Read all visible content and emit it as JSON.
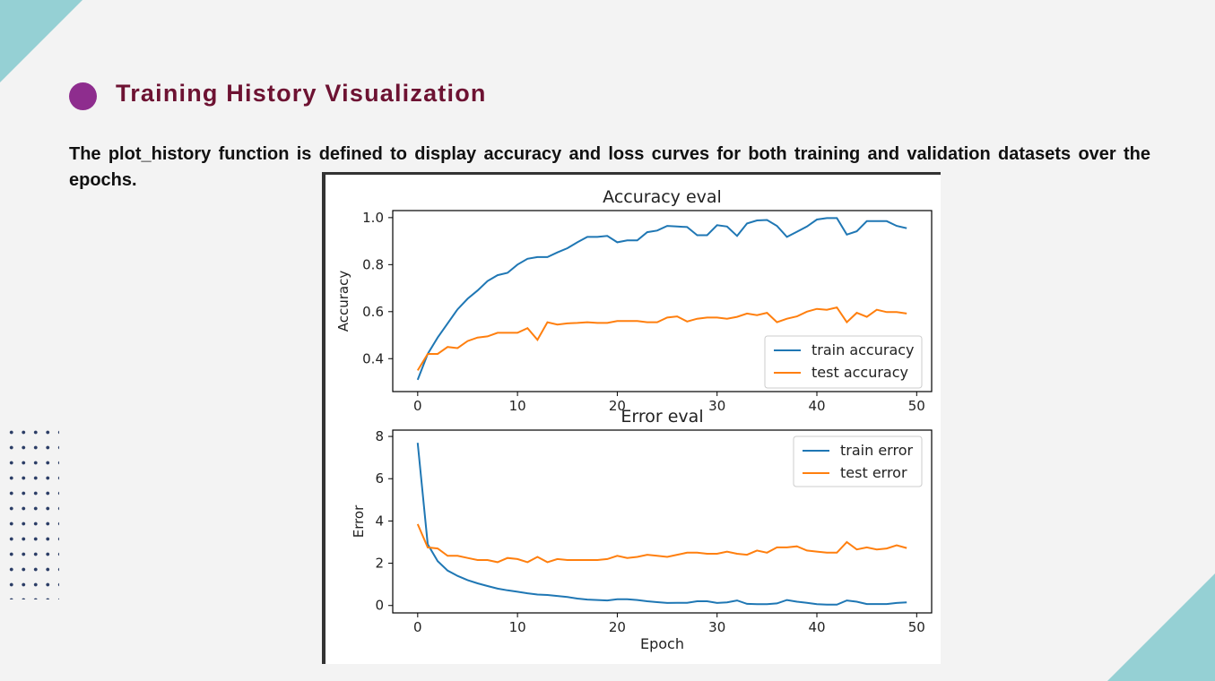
{
  "heading": "Training History Visualization",
  "description": "The plot_history function is defined to display accuracy and loss curves for both training and validation datasets over the epochs.",
  "colors": {
    "accent_bullet": "#8e2d8e",
    "title": "#6d1232",
    "teal": "#95d0d4",
    "train": "#1f77b4",
    "test": "#ff7f0e"
  },
  "chart_data": [
    {
      "type": "line",
      "title": "Accuracy eval",
      "xlabel": "",
      "ylabel": "Accuracy",
      "xlim": [
        -2.5,
        51.5
      ],
      "ylim": [
        0.26,
        1.03
      ],
      "xticks": [
        0,
        10,
        20,
        30,
        40,
        50
      ],
      "yticks": [
        0.4,
        0.6,
        0.8,
        1.0
      ],
      "ytick_labels": [
        "0.4",
        "0.6",
        "0.8",
        "1.0"
      ],
      "legend": "bottom-right",
      "x": [
        0,
        1,
        2,
        3,
        4,
        5,
        6,
        7,
        8,
        9,
        10,
        11,
        12,
        13,
        14,
        15,
        16,
        17,
        18,
        19,
        20,
        21,
        22,
        23,
        24,
        25,
        26,
        27,
        28,
        29,
        30,
        31,
        32,
        33,
        34,
        35,
        36,
        37,
        38,
        39,
        40,
        41,
        42,
        43,
        44,
        45,
        46,
        47,
        48,
        49
      ],
      "series": [
        {
          "name": "train accuracy",
          "color": "#1f77b4",
          "values": [
            0.31,
            0.42,
            0.49,
            0.55,
            0.61,
            0.655,
            0.69,
            0.73,
            0.755,
            0.765,
            0.8,
            0.825,
            0.832,
            0.832,
            0.852,
            0.87,
            0.895,
            0.918,
            0.918,
            0.922,
            0.895,
            0.903,
            0.903,
            0.938,
            0.945,
            0.965,
            0.962,
            0.96,
            0.925,
            0.925,
            0.968,
            0.962,
            0.922,
            0.975,
            0.988,
            0.99,
            0.965,
            0.918,
            0.94,
            0.962,
            0.992,
            0.998,
            0.998,
            0.928,
            0.942,
            0.985,
            0.985,
            0.985,
            0.965,
            0.955
          ]
        },
        {
          "name": "test accuracy",
          "color": "#ff7f0e",
          "values": [
            0.35,
            0.42,
            0.42,
            0.45,
            0.445,
            0.475,
            0.49,
            0.495,
            0.51,
            0.51,
            0.51,
            0.53,
            0.48,
            0.555,
            0.545,
            0.55,
            0.552,
            0.555,
            0.552,
            0.552,
            0.56,
            0.56,
            0.56,
            0.555,
            0.555,
            0.575,
            0.58,
            0.558,
            0.57,
            0.575,
            0.575,
            0.57,
            0.578,
            0.592,
            0.585,
            0.595,
            0.555,
            0.57,
            0.58,
            0.6,
            0.612,
            0.608,
            0.618,
            0.555,
            0.595,
            0.578,
            0.608,
            0.598,
            0.598,
            0.592
          ]
        }
      ]
    },
    {
      "type": "line",
      "title": "Error eval",
      "xlabel": "Epoch",
      "ylabel": "Error",
      "xlim": [
        -2.5,
        51.5
      ],
      "ylim": [
        -0.35,
        8.3
      ],
      "xticks": [
        0,
        10,
        20,
        30,
        40,
        50
      ],
      "yticks": [
        0,
        2,
        4,
        6,
        8
      ],
      "ytick_labels": [
        "0",
        "2",
        "4",
        "6",
        "8"
      ],
      "legend": "top-right",
      "x": [
        0,
        1,
        2,
        3,
        4,
        5,
        6,
        7,
        8,
        9,
        10,
        11,
        12,
        13,
        14,
        15,
        16,
        17,
        18,
        19,
        20,
        21,
        22,
        23,
        24,
        25,
        26,
        27,
        28,
        29,
        30,
        31,
        32,
        33,
        34,
        35,
        36,
        37,
        38,
        39,
        40,
        41,
        42,
        43,
        44,
        45,
        46,
        47,
        48,
        49
      ],
      "series": [
        {
          "name": "train error",
          "color": "#1f77b4",
          "values": [
            7.7,
            2.9,
            2.1,
            1.65,
            1.4,
            1.2,
            1.05,
            0.92,
            0.8,
            0.72,
            0.65,
            0.58,
            0.52,
            0.5,
            0.45,
            0.4,
            0.33,
            0.28,
            0.26,
            0.24,
            0.3,
            0.3,
            0.26,
            0.2,
            0.16,
            0.12,
            0.13,
            0.13,
            0.2,
            0.2,
            0.12,
            0.15,
            0.24,
            0.08,
            0.06,
            0.06,
            0.1,
            0.26,
            0.18,
            0.13,
            0.06,
            0.04,
            0.04,
            0.24,
            0.18,
            0.07,
            0.07,
            0.07,
            0.12,
            0.15
          ]
        },
        {
          "name": "test error",
          "color": "#ff7f0e",
          "values": [
            3.85,
            2.75,
            2.7,
            2.35,
            2.35,
            2.25,
            2.15,
            2.15,
            2.05,
            2.25,
            2.2,
            2.05,
            2.3,
            2.05,
            2.2,
            2.15,
            2.15,
            2.15,
            2.15,
            2.2,
            2.35,
            2.25,
            2.3,
            2.4,
            2.35,
            2.3,
            2.4,
            2.5,
            2.5,
            2.45,
            2.45,
            2.55,
            2.45,
            2.4,
            2.6,
            2.5,
            2.75,
            2.75,
            2.8,
            2.6,
            2.55,
            2.5,
            2.5,
            3.0,
            2.65,
            2.75,
            2.65,
            2.7,
            2.85,
            2.72
          ]
        }
      ]
    }
  ]
}
